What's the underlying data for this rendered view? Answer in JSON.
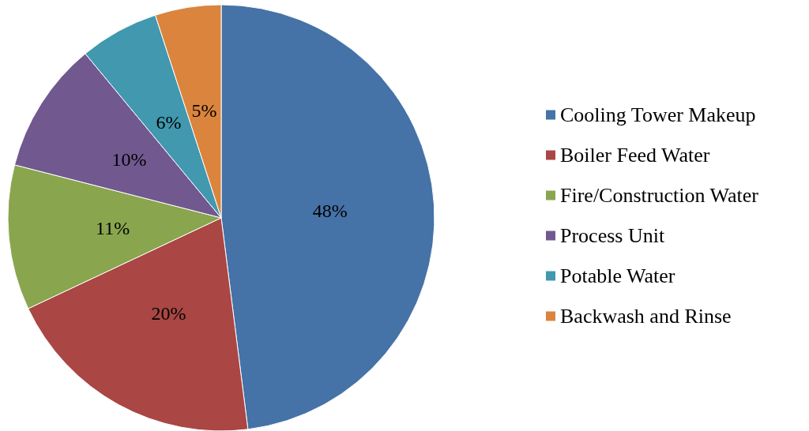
{
  "chart_data": {
    "type": "pie",
    "categories": [
      "Cooling Tower Makeup",
      "Boiler Feed Water",
      "Fire/Construction Water",
      "Process Unit",
      "Potable Water",
      "Backwash and Rinse"
    ],
    "values": [
      48,
      20,
      11,
      10,
      6,
      5
    ],
    "value_labels": [
      "48%",
      "20%",
      "11%",
      "10%",
      "6%",
      "5%"
    ],
    "colors": [
      "#4572a7",
      "#aa4643",
      "#89a54e",
      "#71588f",
      "#4198af",
      "#db843d"
    ],
    "legend": "right"
  }
}
